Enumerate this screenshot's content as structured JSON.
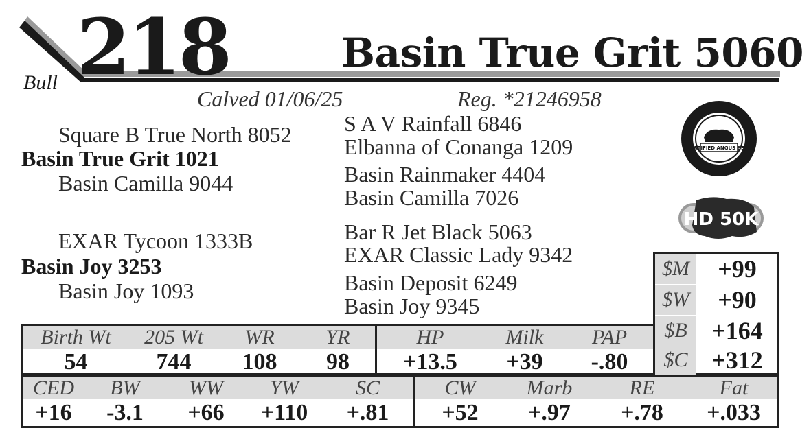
{
  "header": {
    "lot_number": "218",
    "animal_name": "Basin True Grit 5060",
    "sex": "Bull",
    "calved": "Calved 01/06/25",
    "registration": "Reg. *21246958"
  },
  "pedigree": {
    "sire": "Basin True Grit 1021",
    "sire_sire": "Square B True North 8052",
    "sire_dam": "Basin Camilla 9044",
    "sss": "S A V Rainfall 6846",
    "ssd": "Elbanna of Conanga 1209",
    "sds": "Basin Rainmaker 4404",
    "sdd": "Basin Camilla 7026",
    "dam": "Basin Joy 3253",
    "dam_sire": "EXAR Tycoon 1333B",
    "dam_dam": "Basin Joy 1093",
    "dss": "Bar R Jet Black 5063",
    "dsd": "EXAR Classic Lady 9342",
    "dds": "Basin Deposit 6249",
    "ddd": "Basin Joy 9345"
  },
  "badges": {
    "certified": "CERTIFIED ANGUS BEEF",
    "hd50k": "HD 50K"
  },
  "performance": {
    "headers": [
      "Birth Wt",
      "205 Wt",
      "WR",
      "YR"
    ],
    "values": [
      "54",
      "744",
      "108",
      "98"
    ]
  },
  "maternal": {
    "headers": [
      "HP",
      "Milk",
      "PAP"
    ],
    "values": [
      "+13.5",
      "+39",
      "-.80"
    ]
  },
  "dollar_values": [
    {
      "label": "$M",
      "value": "+99"
    },
    {
      "label": "$W",
      "value": "+90"
    },
    {
      "label": "$B",
      "value": "+164"
    },
    {
      "label": "$C",
      "value": "+312"
    }
  ],
  "growth_epds": {
    "headers": [
      "CED",
      "BW",
      "WW",
      "YW",
      "SC"
    ],
    "values": [
      "+16",
      "-3.1",
      "+66",
      "+110",
      "+.81"
    ]
  },
  "carcass_epds": {
    "headers": [
      "CW",
      "Marb",
      "RE",
      "Fat"
    ],
    "values": [
      "+52",
      "+.97",
      "+.78",
      "+.033"
    ]
  },
  "colors": {
    "ink": "#1a1a1a",
    "shade": "#dcdcdc",
    "bar": "#9a9a9a"
  }
}
